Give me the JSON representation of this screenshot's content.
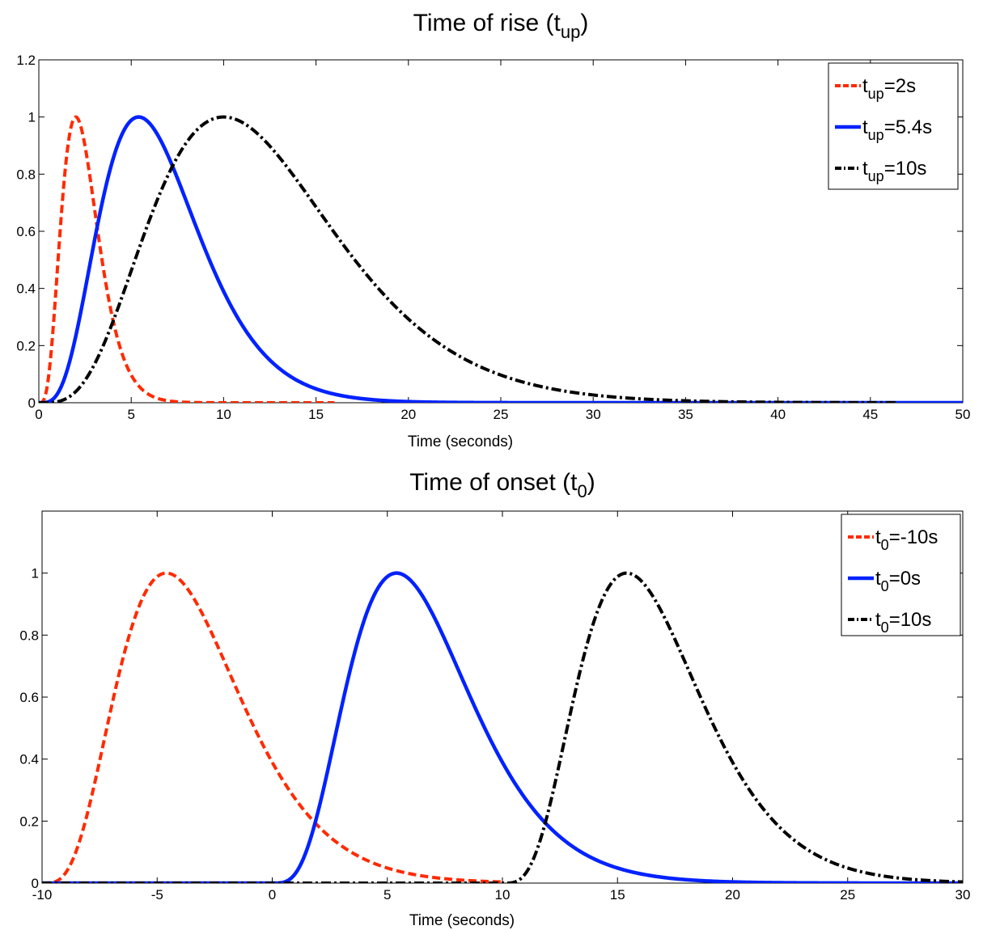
{
  "chart_data": [
    {
      "type": "line",
      "title": {
        "main": "Time of rise (t",
        "sub": "up",
        "close": ")"
      },
      "xlabel": "Time (seconds)",
      "ylabel": "",
      "xlim": [
        0,
        50
      ],
      "ylim": [
        0,
        1.2
      ],
      "xticks": [
        "0",
        "5",
        "10",
        "15",
        "20",
        "25",
        "30",
        "35",
        "40",
        "45",
        "50"
      ],
      "yticks": [
        "0",
        "0.2",
        "0.4",
        "0.6",
        "0.8",
        "1",
        "1.2"
      ],
      "grid": false,
      "legend_position": "top-right",
      "curve_kind": "gamma",
      "series": [
        {
          "name": {
            "prefix": "t",
            "sub": "up",
            "suffix": "=2s"
          },
          "color": "#ff2a00",
          "style": "dashed",
          "peak": 2,
          "t0": 0,
          "end": 16
        },
        {
          "name": {
            "prefix": "t",
            "sub": "up",
            "suffix": "=5.4s"
          },
          "color": "#0022ff",
          "style": "solid",
          "peak": 5.4,
          "t0": 0,
          "end": 50
        },
        {
          "name": {
            "prefix": "t",
            "sub": "up",
            "suffix": "=10s"
          },
          "color": "#000000",
          "style": "dashdot",
          "peak": 10,
          "t0": 0,
          "end": 46.5
        }
      ]
    },
    {
      "type": "line",
      "title": {
        "main": "Time of onset (t",
        "sub": "0",
        "close": ")"
      },
      "xlabel": "Time (seconds)",
      "ylabel": "",
      "xlim": [
        -10,
        30
      ],
      "ylim": [
        0,
        1.2
      ],
      "xticks": [
        "-10",
        "-5",
        "0",
        "5",
        "10",
        "15",
        "20",
        "25",
        "30"
      ],
      "yticks": [
        "0",
        "0.2",
        "0.4",
        "0.6",
        "0.8",
        "1"
      ],
      "grid": false,
      "legend_position": "top-right",
      "curve_kind": "gamma",
      "series": [
        {
          "name": {
            "prefix": "t",
            "sub": "0",
            "suffix": "=-10s"
          },
          "color": "#ff2a00",
          "style": "dashed",
          "peak": 5.4,
          "t0": -10,
          "end": 10
        },
        {
          "name": {
            "prefix": "t",
            "sub": "0",
            "suffix": "=0s"
          },
          "color": "#0022ff",
          "style": "solid",
          "peak": 5.4,
          "t0": 0,
          "end": 30
        },
        {
          "name": {
            "prefix": "t",
            "sub": "0",
            "suffix": "=10s"
          },
          "color": "#000000",
          "style": "dashdot",
          "peak": 5.4,
          "t0": 10,
          "end": 30
        }
      ]
    }
  ]
}
